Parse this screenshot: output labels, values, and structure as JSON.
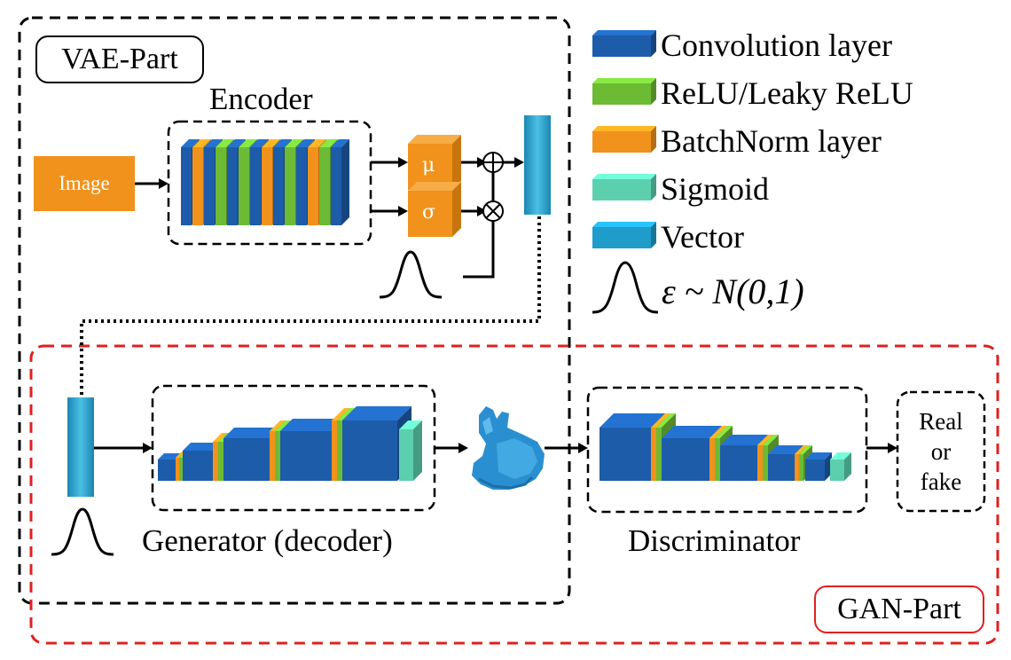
{
  "vae_part": {
    "tag": "VAE-Part",
    "encoder_label": "Encoder",
    "input_label": "Image",
    "mu": "μ",
    "sigma": "σ"
  },
  "gan_part": {
    "tag": "GAN-Part",
    "generator_label": "Generator (decoder)",
    "discriminator_label": "Discriminator",
    "output_line1": "Real",
    "output_line2": "or",
    "output_line3": "fake"
  },
  "legend": {
    "items": [
      {
        "label": "Convolution layer",
        "color": "#1d5ca8",
        "color2": "#2f78c4"
      },
      {
        "label": "ReLU/Leaky ReLU",
        "color": "#6dbb35",
        "color2": "#86d04a"
      },
      {
        "label": "BatchNorm layer",
        "color": "#f0921c",
        "color2": "#f7ac45"
      },
      {
        "label": "Sigmoid",
        "color": "#5ccfae",
        "color2": "#7fe0c3"
      },
      {
        "label": "Vector",
        "color": "#1f9cc9",
        "color2": "#45b7de"
      }
    ],
    "eps_symbol": "ε",
    "eps_formula": " ~ N(0,1)"
  },
  "colors": {
    "vae_border": "#000000",
    "gan_border": "#e02020",
    "bunny": "#2a8fd0"
  }
}
